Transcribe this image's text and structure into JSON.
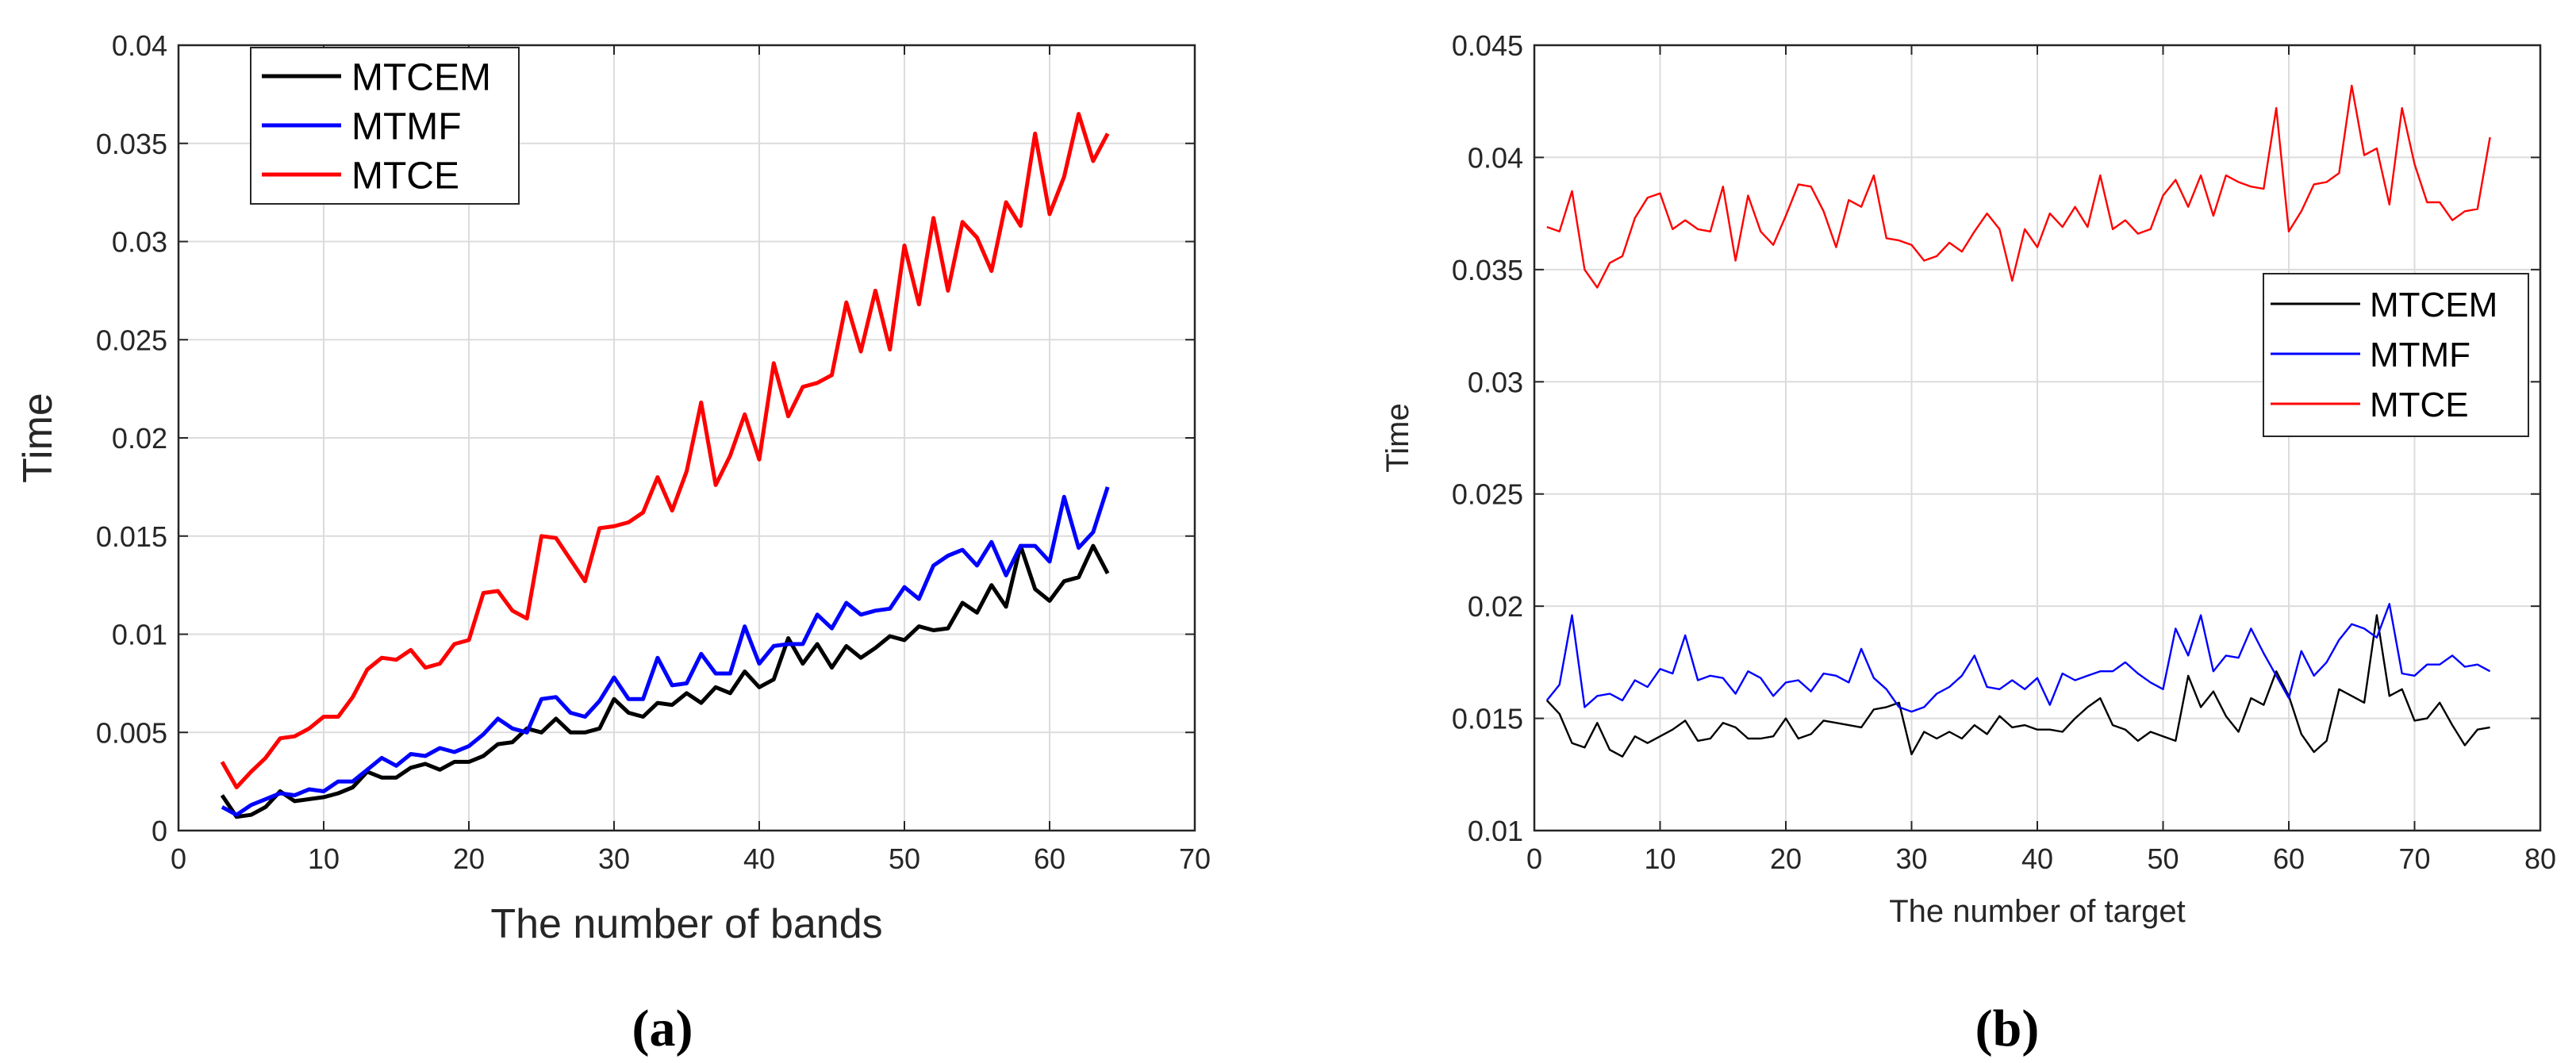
{
  "chart_data": [
    {
      "type": "line",
      "panel_label": "(a)",
      "xlabel": "The number of bands",
      "ylabel": "Time",
      "xlim": [
        0,
        70
      ],
      "ylim": [
        0,
        0.04
      ],
      "xticks": [
        0,
        10,
        20,
        30,
        40,
        50,
        60,
        70
      ],
      "yticks": [
        0,
        0.005,
        0.01,
        0.015,
        0.02,
        0.025,
        0.03,
        0.035,
        0.04
      ],
      "xtick_labels": [
        "0",
        "10",
        "20",
        "30",
        "40",
        "50",
        "60",
        "70"
      ],
      "ytick_labels": [
        "0",
        "0.005",
        "0.01",
        "0.015",
        "0.02",
        "0.025",
        "0.03",
        "0.035",
        "0.04"
      ],
      "grid": true,
      "legend_position": "top-left",
      "x": [
        3,
        4,
        5,
        6,
        7,
        8,
        9,
        10,
        11,
        12,
        13,
        14,
        15,
        16,
        17,
        18,
        19,
        20,
        21,
        22,
        23,
        24,
        25,
        26,
        27,
        28,
        29,
        30,
        31,
        32,
        33,
        34,
        35,
        36,
        37,
        38,
        39,
        40,
        41,
        42,
        43,
        44,
        45,
        46,
        47,
        48,
        49,
        50,
        51,
        52,
        53,
        54,
        55,
        56,
        57,
        58,
        59,
        60,
        61,
        62,
        63,
        64
      ],
      "series": [
        {
          "name": "MTCEM",
          "color": "#000000",
          "values": [
            0.0018,
            0.0007,
            0.0008,
            0.0012,
            0.002,
            0.0015,
            0.0016,
            0.0017,
            0.0019,
            0.0022,
            0.003,
            0.0027,
            0.0027,
            0.0032,
            0.0034,
            0.0031,
            0.0035,
            0.0035,
            0.0038,
            0.0044,
            0.0045,
            0.0052,
            0.005,
            0.0057,
            0.005,
            0.005,
            0.0052,
            0.0067,
            0.006,
            0.0058,
            0.0065,
            0.0064,
            0.007,
            0.0065,
            0.0073,
            0.007,
            0.0081,
            0.0073,
            0.0077,
            0.0098,
            0.0085,
            0.0095,
            0.0083,
            0.0094,
            0.0088,
            0.0093,
            0.0099,
            0.0097,
            0.0104,
            0.0102,
            0.0103,
            0.0116,
            0.0111,
            0.0125,
            0.0114,
            0.0145,
            0.0123,
            0.0117,
            0.0127,
            0.0129,
            0.0145,
            0.0131
          ]
        },
        {
          "name": "MTMF",
          "color": "#0000ff",
          "values": [
            0.0012,
            0.0008,
            0.0013,
            0.0016,
            0.0019,
            0.0018,
            0.0021,
            0.002,
            0.0025,
            0.0025,
            0.0031,
            0.0037,
            0.0033,
            0.0039,
            0.0038,
            0.0042,
            0.004,
            0.0043,
            0.0049,
            0.0057,
            0.0052,
            0.005,
            0.0067,
            0.0068,
            0.006,
            0.0058,
            0.0066,
            0.0078,
            0.0067,
            0.0067,
            0.0088,
            0.0074,
            0.0075,
            0.009,
            0.008,
            0.008,
            0.0104,
            0.0085,
            0.0094,
            0.0095,
            0.0095,
            0.011,
            0.0103,
            0.0116,
            0.011,
            0.0112,
            0.0113,
            0.0124,
            0.0118,
            0.0135,
            0.014,
            0.0143,
            0.0135,
            0.0147,
            0.013,
            0.0145,
            0.0145,
            0.0137,
            0.017,
            0.0144,
            0.0152,
            0.0175
          ]
        },
        {
          "name": "MTCE",
          "color": "#ff0000",
          "values": [
            0.0035,
            0.0022,
            0.003,
            0.0037,
            0.0047,
            0.0048,
            0.0052,
            0.0058,
            0.0058,
            0.0068,
            0.0082,
            0.0088,
            0.0087,
            0.0092,
            0.0083,
            0.0085,
            0.0095,
            0.0097,
            0.0121,
            0.0122,
            0.0112,
            0.0108,
            0.015,
            0.0149,
            0.0138,
            0.0127,
            0.0154,
            0.0155,
            0.0157,
            0.0162,
            0.018,
            0.0163,
            0.0183,
            0.0218,
            0.0176,
            0.0191,
            0.0212,
            0.0189,
            0.0238,
            0.0211,
            0.0226,
            0.0228,
            0.0232,
            0.0269,
            0.0244,
            0.0275,
            0.0245,
            0.0298,
            0.0268,
            0.0312,
            0.0275,
            0.031,
            0.0302,
            0.0285,
            0.032,
            0.0308,
            0.0355,
            0.0314,
            0.0333,
            0.0365,
            0.0341,
            0.0355
          ]
        }
      ]
    },
    {
      "type": "line",
      "panel_label": "(b)",
      "xlabel": "The number of target",
      "ylabel": "Time",
      "xlim": [
        0,
        80
      ],
      "ylim": [
        0.01,
        0.045
      ],
      "xticks": [
        0,
        10,
        20,
        30,
        40,
        50,
        60,
        70,
        80
      ],
      "yticks": [
        0.01,
        0.015,
        0.02,
        0.025,
        0.03,
        0.035,
        0.04,
        0.045
      ],
      "xtick_labels": [
        "0",
        "10",
        "20",
        "30",
        "40",
        "50",
        "60",
        "70",
        "80"
      ],
      "ytick_labels": [
        "0.01",
        "0.015",
        "0.02",
        "0.025",
        "0.03",
        "0.035",
        "0.04",
        "0.045"
      ],
      "grid": true,
      "legend_position": "right",
      "x": [
        1,
        2,
        3,
        4,
        5,
        6,
        7,
        8,
        9,
        10,
        11,
        12,
        13,
        14,
        15,
        16,
        17,
        18,
        19,
        20,
        21,
        22,
        23,
        24,
        25,
        26,
        27,
        28,
        29,
        30,
        31,
        32,
        33,
        34,
        35,
        36,
        37,
        38,
        39,
        40,
        41,
        42,
        43,
        44,
        45,
        46,
        47,
        48,
        49,
        50,
        51,
        52,
        53,
        54,
        55,
        56,
        57,
        58,
        59,
        60,
        61,
        62,
        63,
        64,
        65,
        66,
        67,
        68,
        69,
        70,
        71,
        72,
        73,
        74,
        75,
        76
      ],
      "series": [
        {
          "name": "MTCEM",
          "color": "#000000",
          "values": [
            0.0158,
            0.0152,
            0.0139,
            0.0137,
            0.0148,
            0.0136,
            0.0133,
            0.0142,
            0.0139,
            0.0142,
            0.0145,
            0.0149,
            0.014,
            0.0141,
            0.0148,
            0.0146,
            0.0141,
            0.0141,
            0.0142,
            0.015,
            0.0141,
            0.0143,
            0.0149,
            0.0148,
            0.0147,
            0.0146,
            0.0154,
            0.0155,
            0.0157,
            0.0134,
            0.0144,
            0.0141,
            0.0144,
            0.0141,
            0.0147,
            0.0143,
            0.0151,
            0.0146,
            0.0147,
            0.0145,
            0.0145,
            0.0144,
            0.015,
            0.0155,
            0.0159,
            0.0147,
            0.0145,
            0.014,
            0.0144,
            0.0142,
            0.014,
            0.0169,
            0.0155,
            0.0162,
            0.0151,
            0.0144,
            0.0159,
            0.0156,
            0.0171,
            0.016,
            0.0143,
            0.0135,
            0.014,
            0.0163,
            0.016,
            0.0157,
            0.0196,
            0.016,
            0.0163,
            0.0149,
            0.015,
            0.0157,
            0.0147,
            0.0138,
            0.0145,
            0.0146
          ]
        },
        {
          "name": "MTMF",
          "color": "#0000ff",
          "values": [
            0.0158,
            0.0165,
            0.0196,
            0.0155,
            0.016,
            0.0161,
            0.0158,
            0.0167,
            0.0164,
            0.0172,
            0.017,
            0.0187,
            0.0167,
            0.0169,
            0.0168,
            0.0161,
            0.0171,
            0.0168,
            0.016,
            0.0166,
            0.0167,
            0.0162,
            0.017,
            0.0169,
            0.0166,
            0.0181,
            0.0168,
            0.0163,
            0.0155,
            0.0153,
            0.0155,
            0.0161,
            0.0164,
            0.0169,
            0.0178,
            0.0164,
            0.0163,
            0.0167,
            0.0163,
            0.0168,
            0.0156,
            0.017,
            0.0167,
            0.0169,
            0.0171,
            0.0171,
            0.0175,
            0.017,
            0.0166,
            0.0163,
            0.019,
            0.0178,
            0.0196,
            0.0171,
            0.0178,
            0.0177,
            0.019,
            0.0179,
            0.0169,
            0.0159,
            0.018,
            0.0169,
            0.0175,
            0.0185,
            0.0192,
            0.019,
            0.0186,
            0.0201,
            0.017,
            0.0169,
            0.0174,
            0.0174,
            0.0178,
            0.0173,
            0.0174,
            0.0171
          ]
        },
        {
          "name": "MTCE",
          "color": "#ff0000",
          "values": [
            0.0369,
            0.0367,
            0.0385,
            0.035,
            0.0342,
            0.0353,
            0.0356,
            0.0373,
            0.0382,
            0.0384,
            0.0368,
            0.0372,
            0.0368,
            0.0367,
            0.0387,
            0.0354,
            0.0383,
            0.0367,
            0.0361,
            0.0374,
            0.0388,
            0.0387,
            0.0376,
            0.036,
            0.0381,
            0.0378,
            0.0392,
            0.0364,
            0.0363,
            0.0361,
            0.0354,
            0.0356,
            0.0362,
            0.0358,
            0.0367,
            0.0375,
            0.0368,
            0.0345,
            0.0368,
            0.036,
            0.0375,
            0.0369,
            0.0378,
            0.0369,
            0.0392,
            0.0368,
            0.0372,
            0.0366,
            0.0368,
            0.0383,
            0.039,
            0.0378,
            0.0392,
            0.0374,
            0.0392,
            0.0389,
            0.0387,
            0.0386,
            0.0422,
            0.0367,
            0.0376,
            0.0388,
            0.0389,
            0.0393,
            0.0432,
            0.0401,
            0.0404,
            0.0379,
            0.0422,
            0.0397,
            0.038,
            0.038,
            0.0372,
            0.0376,
            0.0377,
            0.0409
          ]
        }
      ]
    }
  ]
}
